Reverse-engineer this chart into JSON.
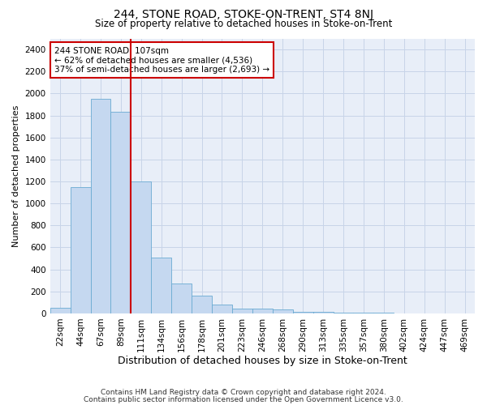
{
  "title": "244, STONE ROAD, STOKE-ON-TRENT, ST4 8NJ",
  "subtitle": "Size of property relative to detached houses in Stoke-on-Trent",
  "xlabel": "Distribution of detached houses by size in Stoke-on-Trent",
  "ylabel": "Number of detached properties",
  "footer_line1": "Contains HM Land Registry data © Crown copyright and database right 2024.",
  "footer_line2": "Contains public sector information licensed under the Open Government Licence v3.0.",
  "bin_labels": [
    "22sqm",
    "44sqm",
    "67sqm",
    "89sqm",
    "111sqm",
    "134sqm",
    "156sqm",
    "178sqm",
    "201sqm",
    "223sqm",
    "246sqm",
    "268sqm",
    "290sqm",
    "313sqm",
    "335sqm",
    "357sqm",
    "380sqm",
    "402sqm",
    "424sqm",
    "447sqm",
    "469sqm"
  ],
  "bar_heights": [
    50,
    1150,
    1950,
    1830,
    1200,
    510,
    270,
    160,
    80,
    45,
    45,
    35,
    12,
    18,
    8,
    6,
    6,
    2,
    2,
    2,
    2
  ],
  "bar_color": "#c5d8f0",
  "bar_edge_color": "#6aabd2",
  "ylim": [
    0,
    2500
  ],
  "yticks": [
    0,
    200,
    400,
    600,
    800,
    1000,
    1200,
    1400,
    1600,
    1800,
    2000,
    2200,
    2400
  ],
  "red_line_x": 4.0,
  "annotation_title": "244 STONE ROAD: 107sqm",
  "annotation_line1": "← 62% of detached houses are smaller (4,536)",
  "annotation_line2": "37% of semi-detached houses are larger (2,693) →",
  "annotation_box_facecolor": "#ffffff",
  "annotation_border_color": "#cc0000",
  "red_line_color": "#cc0000",
  "grid_color": "#c8d4e8",
  "background_color": "#e8eef8",
  "title_fontsize": 10,
  "subtitle_fontsize": 8.5,
  "ylabel_fontsize": 8,
  "xlabel_fontsize": 9,
  "tick_fontsize": 7.5,
  "annot_fontsize": 7.5,
  "footer_fontsize": 6.5
}
